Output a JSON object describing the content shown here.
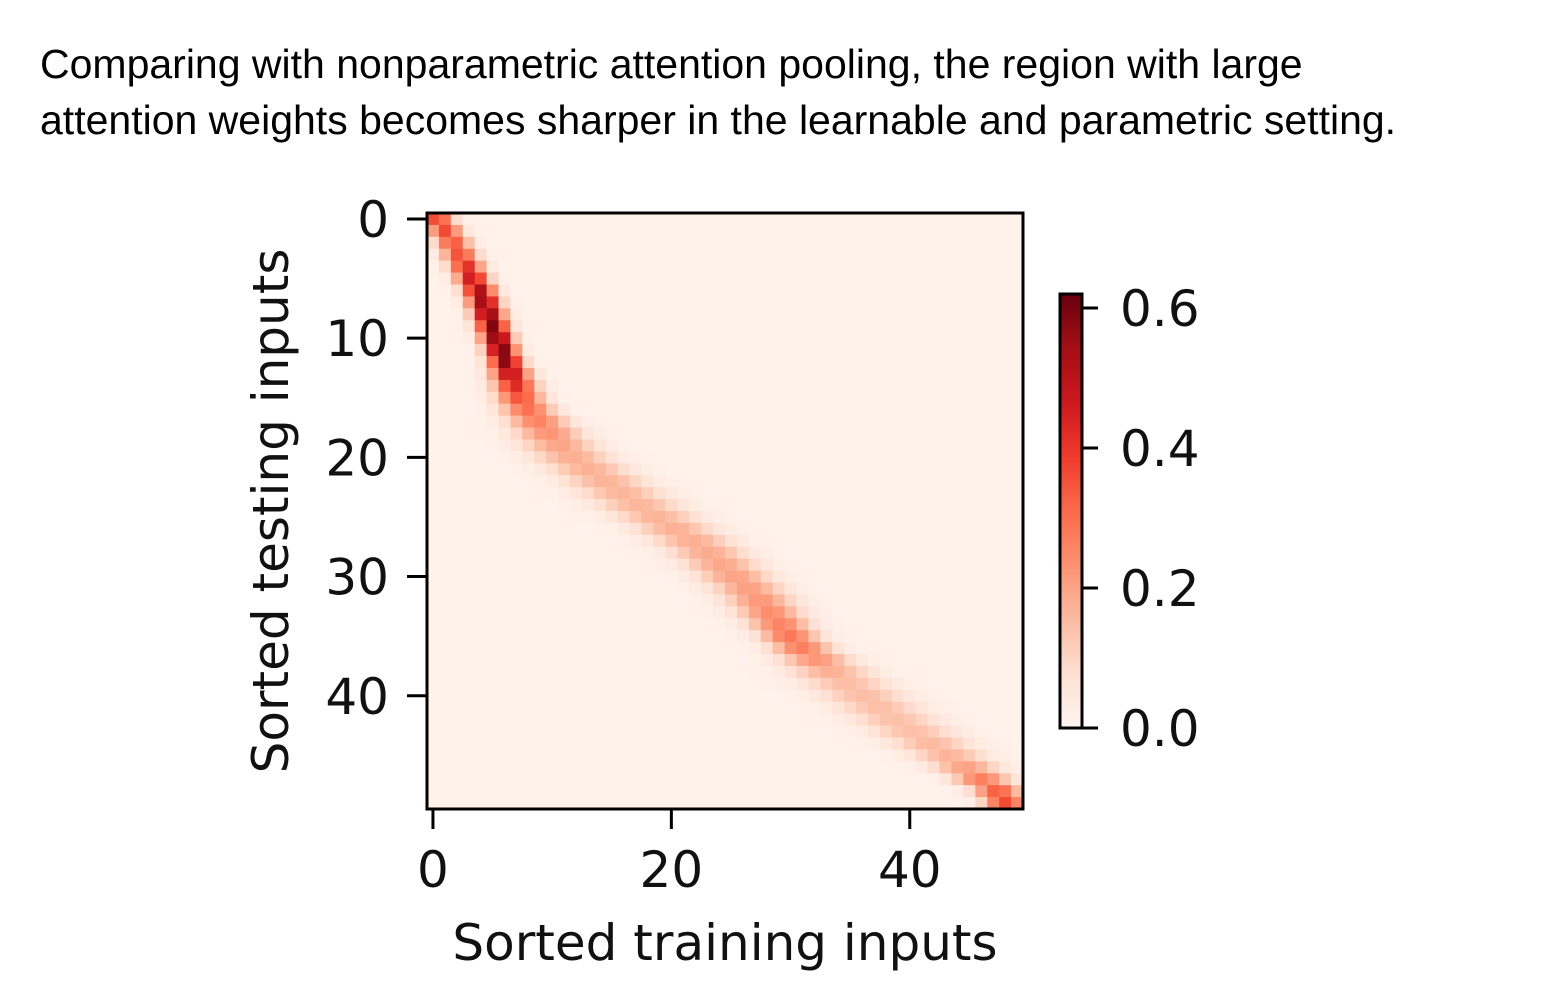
{
  "caption": "Comparing with nonparametric attention pooling, the region with large attention weights becomes sharper in the learnable and parametric setting.",
  "colors": {
    "colormap": "Reds",
    "low": "#fff5f0",
    "high": "#67000d"
  },
  "chart_data": {
    "type": "heatmap",
    "title": "",
    "xlabel": "Sorted training inputs",
    "ylabel": "Sorted testing inputs",
    "xticks": [
      0,
      20,
      40
    ],
    "yticks": [
      0,
      10,
      20,
      30,
      40
    ],
    "xlim": [
      0,
      50
    ],
    "ylim": [
      0,
      50
    ],
    "grid": false,
    "colorbar": {
      "ticks": [
        "0.0",
        "0.2",
        "0.4",
        "0.6"
      ],
      "range": [
        0,
        0.62
      ]
    },
    "diagonal_path": [
      {
        "row": 0,
        "col": 0.5,
        "peak": 0.38,
        "width": 0.9
      },
      {
        "row": 3,
        "col": 2.5,
        "peak": 0.32,
        "width": 1.0
      },
      {
        "row": 7,
        "col": 4.6,
        "peak": 0.55,
        "width": 0.9
      },
      {
        "row": 12,
        "col": 6.4,
        "peak": 0.6,
        "width": 0.9
      },
      {
        "row": 16,
        "col": 8.0,
        "peak": 0.3,
        "width": 1.4
      },
      {
        "row": 20,
        "col": 11.5,
        "peak": 0.17,
        "width": 2.2
      },
      {
        "row": 24,
        "col": 17.0,
        "peak": 0.15,
        "width": 2.4
      },
      {
        "row": 28,
        "col": 23.0,
        "peak": 0.17,
        "width": 2.2
      },
      {
        "row": 32,
        "col": 27.5,
        "peak": 0.2,
        "width": 2.0
      },
      {
        "row": 36,
        "col": 30.8,
        "peak": 0.28,
        "width": 1.6
      },
      {
        "row": 39,
        "col": 34.5,
        "peak": 0.14,
        "width": 2.4
      },
      {
        "row": 43,
        "col": 40.0,
        "peak": 0.13,
        "width": 2.4
      },
      {
        "row": 46,
        "col": 44.5,
        "peak": 0.16,
        "width": 2.0
      },
      {
        "row": 49,
        "col": 48.5,
        "peak": 0.35,
        "width": 1.2
      }
    ]
  }
}
